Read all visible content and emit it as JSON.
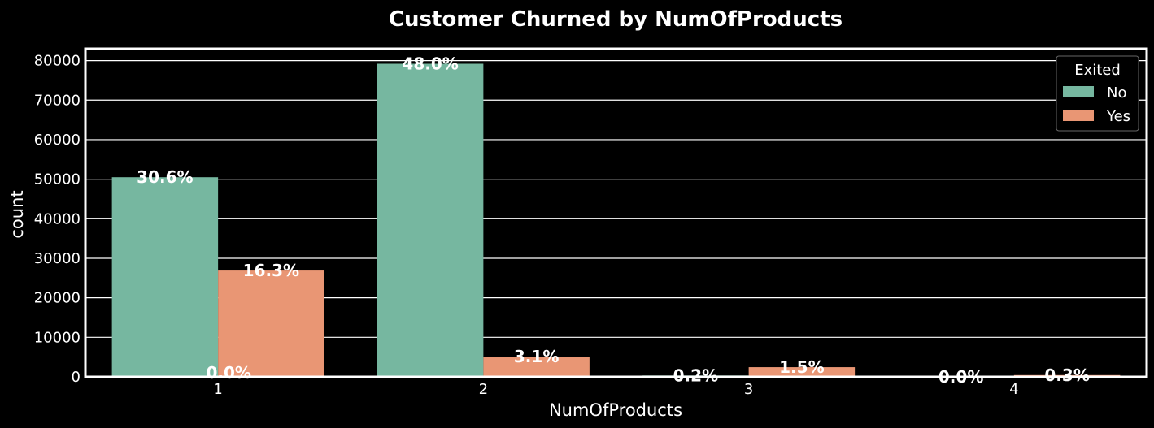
{
  "chart_data": {
    "type": "bar",
    "title": "Customer Churned by NumOfProducts",
    "xlabel": "NumOfProducts",
    "ylabel": "count",
    "categories": [
      "1",
      "2",
      "3",
      "4"
    ],
    "ylim": [
      0,
      83000
    ],
    "yticks": [
      0,
      10000,
      20000,
      30000,
      40000,
      50000,
      60000,
      70000,
      80000
    ],
    "grid": true,
    "legend": {
      "title": "Exited",
      "placement": "top-right"
    },
    "series": [
      {
        "name": "No",
        "color": "#76b7a0",
        "values": [
          50500,
          79200,
          350,
          5
        ],
        "labels": [
          "30.6%",
          "48.0%",
          "0.2%",
          "0.0%"
        ]
      },
      {
        "name": "Yes",
        "color": "#e99674",
        "values": [
          26900,
          5100,
          2450,
          450
        ],
        "labels": [
          "16.3%",
          "3.1%",
          "1.5%",
          "0.3%"
        ]
      }
    ],
    "extra_annotations": [
      {
        "category": "1",
        "text": "0.0%",
        "y": 0
      }
    ]
  }
}
